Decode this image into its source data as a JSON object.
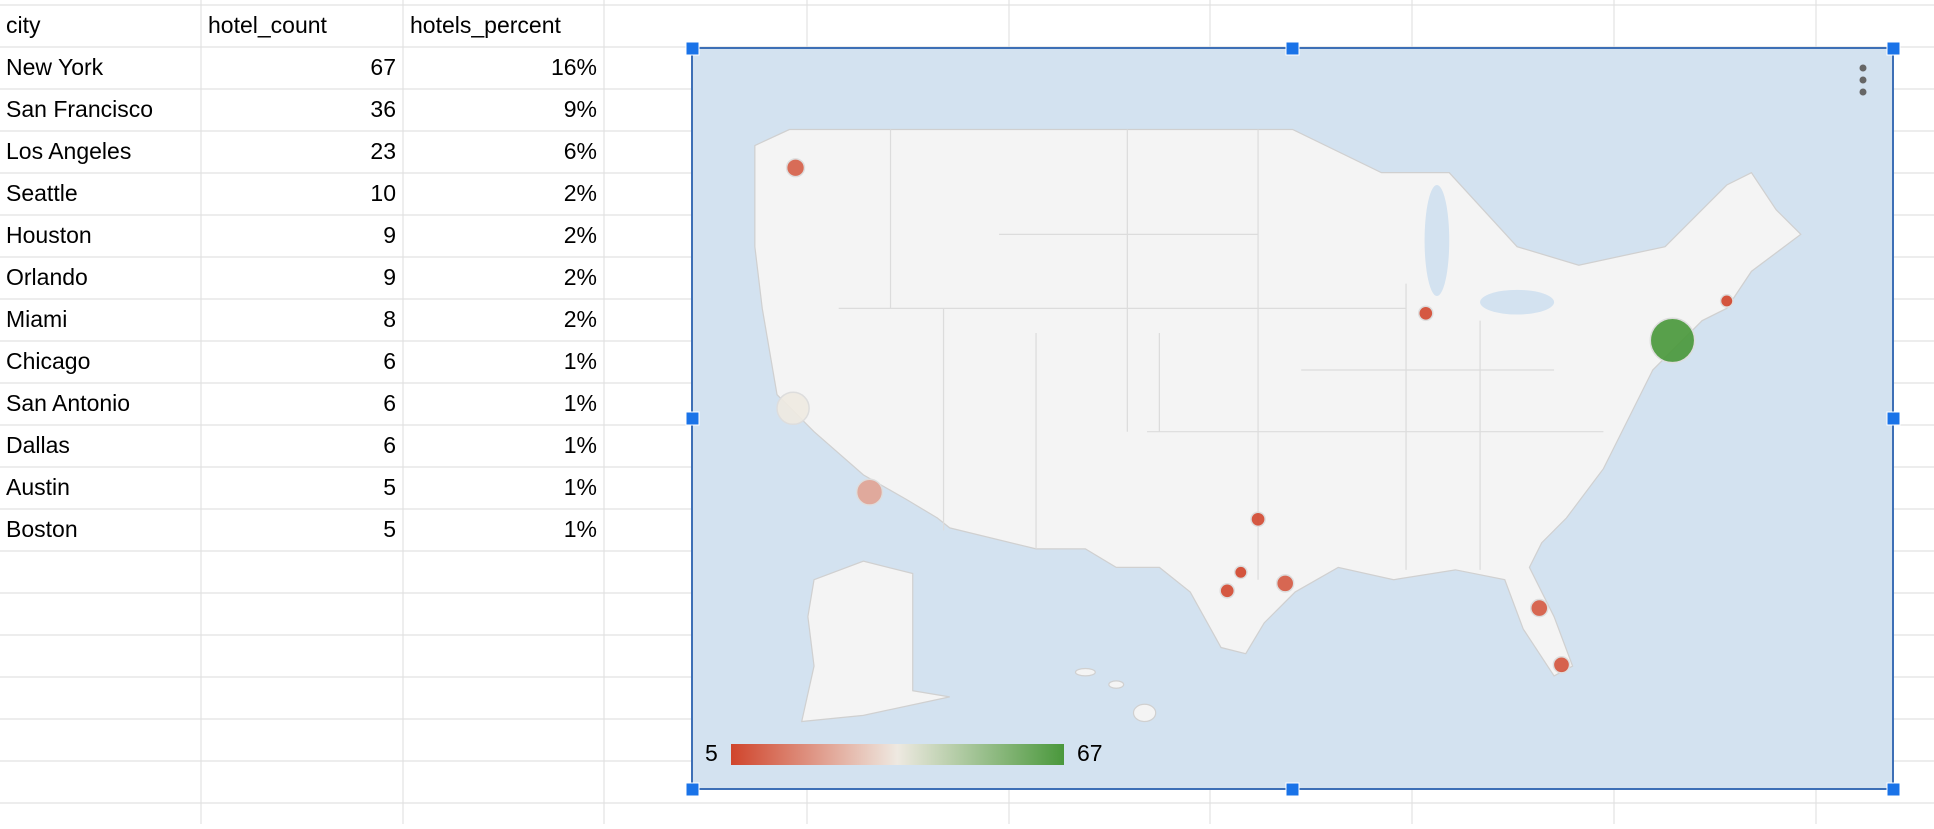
{
  "table": {
    "columns": [
      "city",
      "hotel_count",
      "hotels_percent"
    ],
    "rows": [
      [
        "New York",
        67,
        "16%"
      ],
      [
        "San Francisco",
        36,
        "9%"
      ],
      [
        "Los Angeles",
        23,
        "6%"
      ],
      [
        "Seattle",
        10,
        "2%"
      ],
      [
        "Houston",
        9,
        "2%"
      ],
      [
        "Orlando",
        9,
        "2%"
      ],
      [
        "Miami",
        8,
        "2%"
      ],
      [
        "Chicago",
        6,
        "1%"
      ],
      [
        "San Antonio",
        6,
        "1%"
      ],
      [
        "Dallas",
        6,
        "1%"
      ],
      [
        "Austin",
        5,
        "1%"
      ],
      [
        "Boston",
        5,
        "1%"
      ]
    ]
  },
  "map": {
    "legend": {
      "min": 5,
      "max": 67
    }
  }
}
